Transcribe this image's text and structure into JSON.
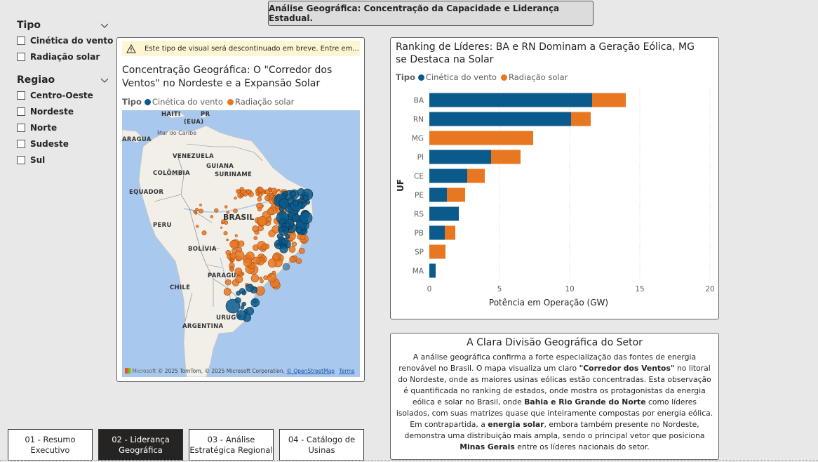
{
  "header": {
    "title": "Análise Geográfica: Concentração da Capacidade e Liderança Estadual."
  },
  "filters": [
    {
      "title": "Tipo",
      "options": [
        "Cinética do vento",
        "Radiação solar"
      ]
    },
    {
      "title": "Regiao",
      "options": [
        "Centro-Oeste",
        "Nordeste",
        "Norte",
        "Sudeste",
        "Sul"
      ]
    }
  ],
  "map_visual": {
    "warning": "Este tipo de visual será descontinuado em breve. Entre em...",
    "title": "Concentração Geográfica: O \"Corredor dos Ventos\" no Nordeste e a Expansão Solar",
    "legend_title": "Tipo",
    "legend": [
      "Cinética do vento",
      "Radiação solar"
    ],
    "labels": {
      "haiti": "HAITI",
      "pr": "PR",
      "eua": "(EUA)",
      "caribe": "Mar do Caribe",
      "aragua": "ARAGUA",
      "venezuela": "VENEZUELA",
      "guiana": "GUIANA",
      "suriname": "SURINAME",
      "colombia": "COLÔMBIA",
      "equador": "EQUADOR",
      "peru": "PERU",
      "brasil": "BRASIL",
      "bolivia": "BOLÍVIA",
      "paraguai": "PARAGUA",
      "chile": "CHILE",
      "uruguai": "URUG",
      "argentina": "ARGENTINA"
    },
    "copyright": "© 2025 TomTom, © 2025 Microsoft Corporation,",
    "microsoft": "Microsoft",
    "osm": "© OpenStreetMap",
    "terms": "Terms"
  },
  "ranking": {
    "title": "Ranking de Líderes: BA e RN Dominam a Geração Eólica, MG se Destaca na Solar",
    "legend_title": "Tipo",
    "legend": [
      "Cinética do vento",
      "Radiação solar"
    ]
  },
  "chart_data": {
    "type": "bar",
    "orientation": "horizontal",
    "stacked": true,
    "title": "Ranking de Líderes: BA e RN Dominam a Geração Eólica, MG se Destaca na Solar",
    "xlabel": "Potência em Operação (GW)",
    "ylabel": "UF",
    "categories": [
      "BA",
      "RN",
      "MG",
      "PI",
      "CE",
      "PE",
      "RS",
      "PB",
      "SP",
      "MA"
    ],
    "series": [
      {
        "name": "Cinética do vento",
        "color": "#0b5a8c",
        "values": [
          11.6,
          10.1,
          0,
          4.4,
          2.7,
          1.25,
          2.1,
          1.1,
          0,
          0.45
        ]
      },
      {
        "name": "Radiação solar",
        "color": "#e87722",
        "values": [
          2.4,
          1.4,
          7.4,
          2.1,
          1.25,
          1.3,
          0,
          0.75,
          1.15,
          0
        ]
      }
    ],
    "xlim": [
      0,
      20
    ],
    "xticks": [
      0,
      5,
      10,
      15,
      20
    ],
    "grid": true,
    "legend_position": "top-left"
  },
  "text_panel": {
    "title": "A Clara Divisão Geográfica do Setor",
    "p1_a": "A análise geográfica confirma a forte especialização das fontes de energia renovável no Brasil. O mapa visualiza um claro ",
    "p1_b": "\"Corredor dos Ventos\"",
    "p1_c": " no litoral do Nordeste, onde as maiores usinas eólicas estão concentradas. Esta observação é quantificada no ranking de estados, onde mostra os protagonistas da energia eólica e solar no Brasil, onde ",
    "p1_d": "Bahia e Rio Grande do Norte",
    "p1_e": " como líderes isolados, com suas matrizes quase que inteiramente compostas por energia eólica.",
    "p2_a": "Em contrapartida, a ",
    "p2_b": "energia solar",
    "p2_c": ", embora também presente no Nordeste, demonstra uma distribuição mais ampla, sendo o principal vetor que posiciona ",
    "p2_d": "Minas Gerais",
    "p2_e": " entre os líderes nacionais do setor."
  },
  "nav": [
    {
      "label1": "01 - Resumo",
      "label2": "Executivo",
      "active": false
    },
    {
      "label1": "02 - Liderança",
      "label2": "Geográfica",
      "active": true
    },
    {
      "label1": "03 - Análise",
      "label2": "Estratégica Regional",
      "active": false
    },
    {
      "label1": "04 - Catálogo de",
      "label2": "Usinas",
      "active": false
    }
  ],
  "colors": {
    "wind": "#0b5a8c",
    "solar": "#e87722",
    "sea": "#a8c8ee",
    "land": "#f1efe8"
  }
}
